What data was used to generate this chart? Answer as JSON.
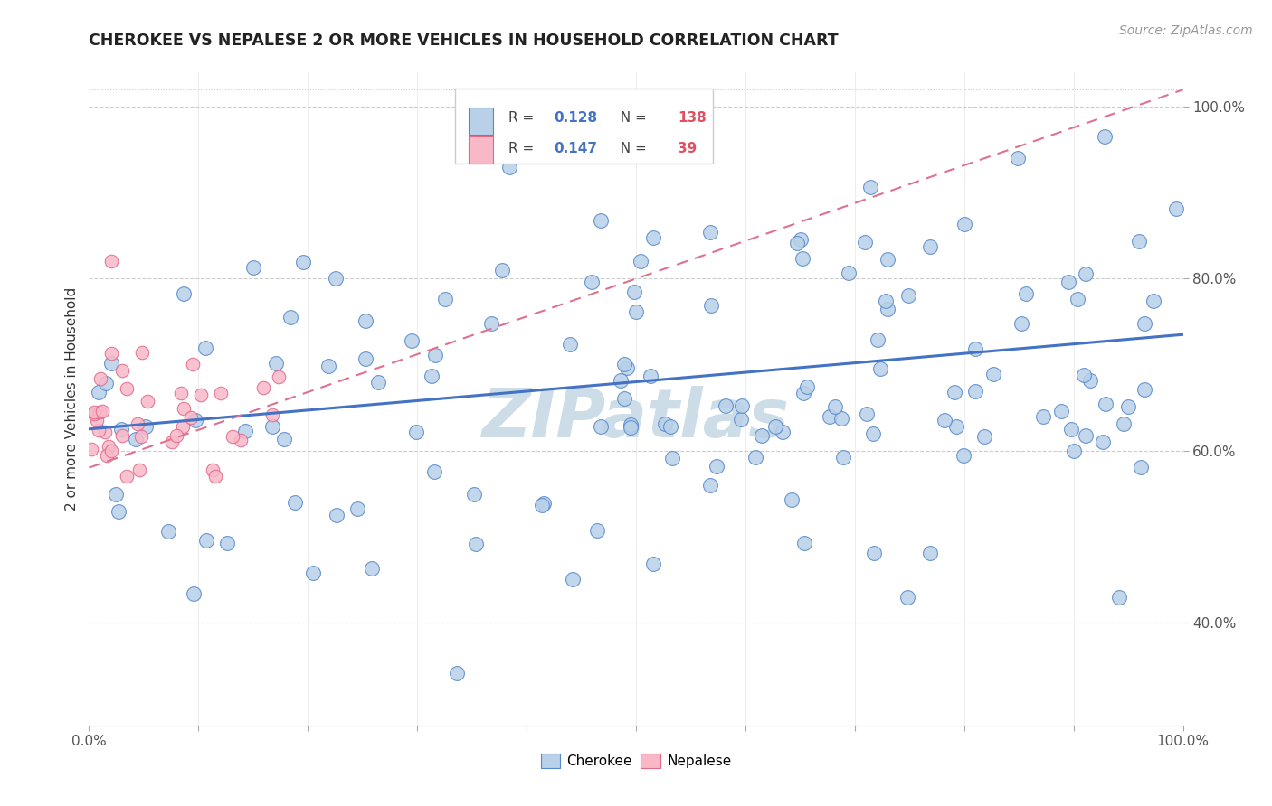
{
  "title": "CHEROKEE VS NEPALESE 2 OR MORE VEHICLES IN HOUSEHOLD CORRELATION CHART",
  "source": "Source: ZipAtlas.com",
  "ylabel": "2 or more Vehicles in Household",
  "cherokee_R": 0.128,
  "cherokee_N": 138,
  "nepalese_R": 0.147,
  "nepalese_N": 39,
  "cherokee_color": "#b8d0e8",
  "cherokee_edge_color": "#5588cc",
  "cherokee_line_color": "#4472c4",
  "nepalese_color": "#f8b8c8",
  "nepalese_edge_color": "#e06888",
  "nepalese_line_color": "#e07090",
  "background_color": "#ffffff",
  "grid_color": "#cccccc",
  "watermark_color": "#ccdde8",
  "seed": 12345
}
